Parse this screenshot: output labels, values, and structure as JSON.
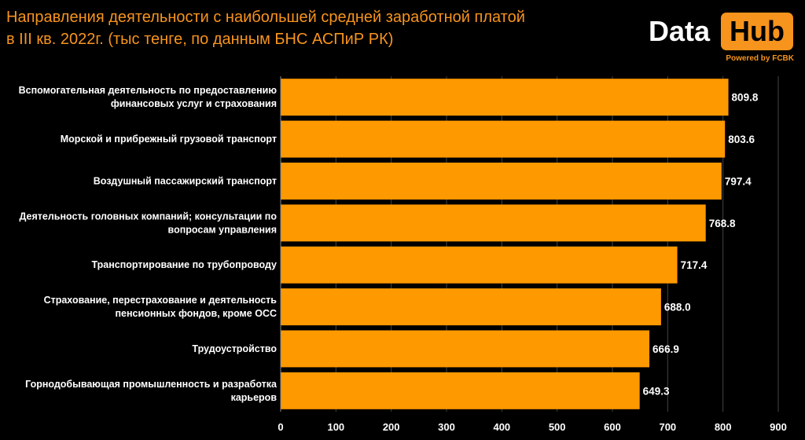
{
  "header": {
    "title_line1": "Направления деятельности с наибольшей средней заработной платой",
    "title_line2": "в III кв. 2022г. (тыс тенге, по данным БНС АСПиР РК)"
  },
  "logo": {
    "word_data": "Data",
    "word_hub": "Hub",
    "powered_by": "Powered by FCBK"
  },
  "colors": {
    "background": "#000000",
    "bar": "#FF9900",
    "title": "#F7941D",
    "text": "#FFFFFF",
    "grid": "#444444"
  },
  "chart_data": {
    "type": "bar",
    "orientation": "horizontal",
    "title": "Направления деятельности с наибольшей средней заработной платой в III кв. 2022г. (тыс тенге, по данным БНС АСПиР РК)",
    "categories": [
      [
        "Вспомогательная деятельность по предоставлению",
        "финансовых услуг и страхования"
      ],
      [
        "Морской и прибрежный грузовой транспорт"
      ],
      [
        "Воздушный пассажирский транспорт"
      ],
      [
        "Деятельность головных компаний; консультации по",
        "вопросам управления"
      ],
      [
        "Транспортирование по трубопроводу"
      ],
      [
        "Страхование, перестрахование и деятельность",
        "пенсионных фондов, кроме ОСС"
      ],
      [
        "Трудоустройство"
      ],
      [
        "Горнодобывающая промышленность и разработка",
        "карьеров"
      ]
    ],
    "values": [
      809.8,
      803.6,
      797.4,
      768.8,
      717.4,
      688.0,
      666.9,
      649.3
    ],
    "value_labels": [
      "809.8",
      "803.6",
      "797.4",
      "768.8",
      "717.4",
      "688.0",
      "666.9",
      "649.3"
    ],
    "xlim": [
      0,
      900
    ],
    "xticks": [
      0,
      100,
      200,
      300,
      400,
      500,
      600,
      700,
      800,
      900
    ],
    "grid": true,
    "xlabel": "",
    "ylabel": ""
  }
}
